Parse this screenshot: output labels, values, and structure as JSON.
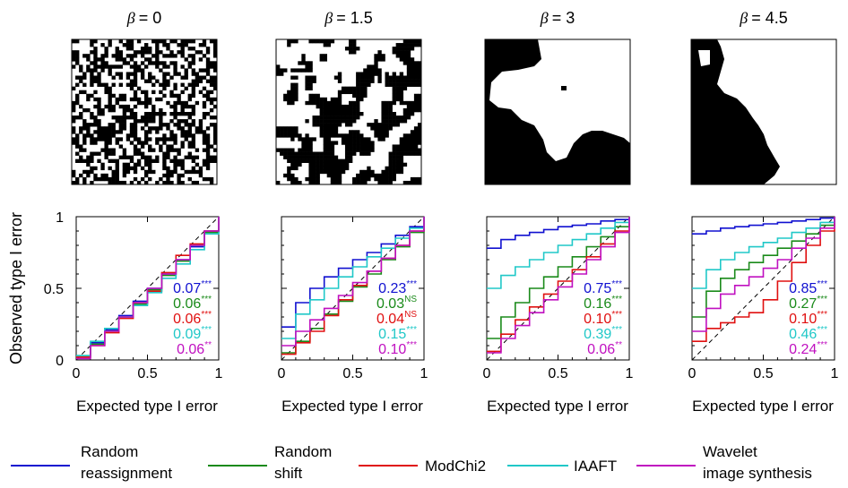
{
  "beta_symbol": "β",
  "panels": [
    {
      "beta_label": "= 0",
      "scores": [
        {
          "value": "0.07",
          "sig": "***"
        },
        {
          "value": "0.06",
          "sig": "***"
        },
        {
          "value": "0.06",
          "sig": "***"
        },
        {
          "value": "0.09",
          "sig": "***"
        },
        {
          "value": "0.06",
          "sig": "**"
        }
      ]
    },
    {
      "beta_label": "= 1.5",
      "scores": [
        {
          "value": "0.23",
          "sig": "***"
        },
        {
          "value": "0.03",
          "sig": "NS"
        },
        {
          "value": "0.04",
          "sig": "NS"
        },
        {
          "value": "0.15",
          "sig": "***"
        },
        {
          "value": "0.10",
          "sig": "***"
        }
      ]
    },
    {
      "beta_label": "= 3",
      "scores": [
        {
          "value": "0.75",
          "sig": "***"
        },
        {
          "value": "0.16",
          "sig": "***"
        },
        {
          "value": "0.10",
          "sig": "***"
        },
        {
          "value": "0.39",
          "sig": "***"
        },
        {
          "value": "0.06",
          "sig": "**"
        }
      ]
    },
    {
      "beta_label": "= 4.5",
      "scores": [
        {
          "value": "0.85",
          "sig": "***"
        },
        {
          "value": "0.27",
          "sig": "***"
        },
        {
          "value": "0.10",
          "sig": "***"
        },
        {
          "value": "0.46",
          "sig": "***"
        },
        {
          "value": "0.24",
          "sig": "***"
        }
      ]
    }
  ],
  "legend": [
    {
      "lines": [
        "Random",
        "reassignment"
      ],
      "color": "#1010d0"
    },
    {
      "lines": [
        "Random",
        "shift"
      ],
      "color": "#1a8a1a"
    },
    {
      "lines": [
        "ModChi2"
      ],
      "color": "#e01010"
    },
    {
      "lines": [
        "IAAFT"
      ],
      "color": "#20c8c8"
    },
    {
      "lines": [
        "Wavelet",
        "image synthesis"
      ],
      "color": "#c010c0"
    }
  ],
  "chart_data": {
    "type": "line",
    "xlabel": "Expected type I error",
    "ylabel": "Observed type I error",
    "xlim": [
      0,
      1
    ],
    "ylim": [
      0,
      1
    ],
    "xticks": [
      "0",
      "0.5",
      "1"
    ],
    "yticks": [
      "0",
      "0.5",
      "1"
    ],
    "reference_line": "dashed diagonal y = x",
    "series_names": [
      "Random reassignment",
      "Random shift",
      "ModChi2",
      "IAAFT",
      "Wavelet image synthesis"
    ],
    "series_colors": [
      "#1010d0",
      "#1a8a1a",
      "#e01010",
      "#20c8c8",
      "#c010c0"
    ],
    "x": [
      0,
      0.1,
      0.2,
      0.3,
      0.4,
      0.5,
      0.6,
      0.7,
      0.8,
      0.9,
      1
    ],
    "panels": [
      {
        "beta": 0,
        "series": [
          {
            "values": [
              0.02,
              0.12,
              0.21,
              0.31,
              0.41,
              0.5,
              0.6,
              0.7,
              0.79,
              0.9,
              1
            ]
          },
          {
            "values": [
              0.03,
              0.11,
              0.2,
              0.3,
              0.39,
              0.49,
              0.59,
              0.69,
              0.8,
              0.89,
              1
            ]
          },
          {
            "values": [
              0.02,
              0.1,
              0.19,
              0.29,
              0.4,
              0.48,
              0.61,
              0.73,
              0.81,
              0.9,
              1
            ]
          },
          {
            "values": [
              0.03,
              0.13,
              0.22,
              0.3,
              0.38,
              0.47,
              0.57,
              0.67,
              0.77,
              0.88,
              1
            ]
          },
          {
            "values": [
              0.01,
              0.1,
              0.2,
              0.3,
              0.4,
              0.5,
              0.6,
              0.7,
              0.8,
              0.9,
              1
            ]
          }
        ]
      },
      {
        "beta": 1.5,
        "series": [
          {
            "values": [
              0.23,
              0.4,
              0.5,
              0.58,
              0.64,
              0.7,
              0.75,
              0.81,
              0.87,
              0.93,
              1
            ]
          },
          {
            "values": [
              0.05,
              0.13,
              0.22,
              0.32,
              0.41,
              0.51,
              0.6,
              0.7,
              0.79,
              0.89,
              1
            ]
          },
          {
            "values": [
              0.04,
              0.12,
              0.2,
              0.31,
              0.42,
              0.52,
              0.62,
              0.71,
              0.8,
              0.9,
              1
            ]
          },
          {
            "values": [
              0.15,
              0.32,
              0.42,
              0.5,
              0.58,
              0.65,
              0.72,
              0.78,
              0.85,
              0.92,
              1
            ]
          },
          {
            "values": [
              0.1,
              0.2,
              0.28,
              0.36,
              0.45,
              0.54,
              0.62,
              0.71,
              0.8,
              0.9,
              1
            ]
          }
        ]
      },
      {
        "beta": 3,
        "series": [
          {
            "values": [
              0.78,
              0.84,
              0.87,
              0.89,
              0.91,
              0.93,
              0.94,
              0.95,
              0.97,
              0.98,
              1
            ]
          },
          {
            "values": [
              0.15,
              0.3,
              0.4,
              0.5,
              0.58,
              0.65,
              0.72,
              0.79,
              0.86,
              0.93,
              1
            ]
          },
          {
            "values": [
              0.06,
              0.18,
              0.28,
              0.37,
              0.46,
              0.55,
              0.63,
              0.72,
              0.81,
              0.9,
              1
            ]
          },
          {
            "values": [
              0.5,
              0.59,
              0.65,
              0.7,
              0.75,
              0.8,
              0.84,
              0.88,
              0.92,
              0.96,
              1
            ]
          },
          {
            "values": [
              0.05,
              0.15,
              0.24,
              0.33,
              0.42,
              0.51,
              0.6,
              0.7,
              0.79,
              0.89,
              1
            ]
          }
        ]
      },
      {
        "beta": 4.5,
        "series": [
          {
            "values": [
              0.88,
              0.9,
              0.92,
              0.93,
              0.94,
              0.95,
              0.96,
              0.97,
              0.98,
              0.99,
              1
            ]
          },
          {
            "values": [
              0.3,
              0.48,
              0.57,
              0.63,
              0.68,
              0.73,
              0.78,
              0.83,
              0.88,
              0.94,
              1
            ]
          },
          {
            "values": [
              0.13,
              0.22,
              0.26,
              0.3,
              0.33,
              0.42,
              0.55,
              0.68,
              0.8,
              0.9,
              1
            ]
          },
          {
            "values": [
              0.5,
              0.63,
              0.7,
              0.75,
              0.79,
              0.82,
              0.85,
              0.89,
              0.92,
              0.96,
              1
            ]
          },
          {
            "values": [
              0.2,
              0.36,
              0.46,
              0.52,
              0.58,
              0.64,
              0.7,
              0.78,
              0.85,
              0.92,
              1
            ]
          }
        ]
      }
    ]
  },
  "texture_images": [
    {
      "beta": 0,
      "pattern": "random binary noise, fine grain"
    },
    {
      "beta": 1.5,
      "pattern": "binary texture with small patches"
    },
    {
      "beta": 3,
      "pattern": "binary texture with large patches"
    },
    {
      "beta": 4.5,
      "pattern": "binary texture with one large region"
    }
  ]
}
